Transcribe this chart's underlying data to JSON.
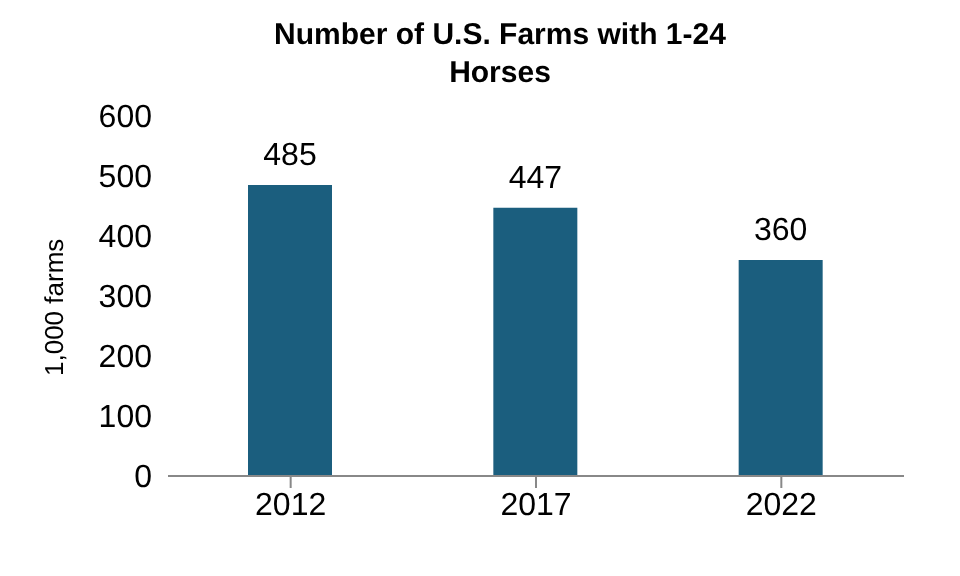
{
  "chart_data": {
    "type": "bar",
    "title": "Number of U.S. Farms with 1-24 Horses",
    "ylabel": "1,000 farms",
    "categories": [
      "2012",
      "2017",
      "2022"
    ],
    "values": [
      485,
      447,
      360
    ],
    "color": "#1b5e7e",
    "ylim": [
      0,
      600
    ],
    "yticks": [
      0,
      100,
      200,
      300,
      400,
      500,
      600
    ],
    "data_labels": true,
    "grid": false,
    "legend": false
  }
}
